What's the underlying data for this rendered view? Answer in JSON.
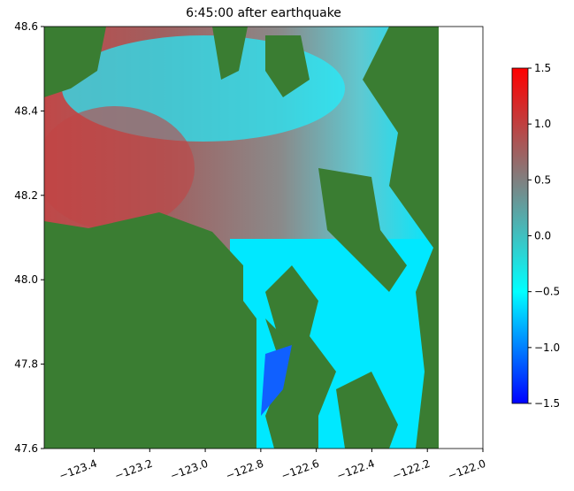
{
  "chart_data": {
    "type": "heatmap",
    "title": "6:45:00 after earthquake",
    "xlim": [
      -123.58,
      -122.0
    ],
    "xticks": [
      {
        "value": -123.4,
        "label": "−123.4"
      },
      {
        "value": -123.2,
        "label": "−123.2"
      },
      {
        "value": -123.0,
        "label": "−123.0"
      },
      {
        "value": -122.8,
        "label": "−122.8"
      },
      {
        "value": -122.6,
        "label": "−122.6"
      },
      {
        "value": -122.4,
        "label": "−122.4"
      },
      {
        "value": -122.2,
        "label": "−122.2"
      },
      {
        "value": -122.0,
        "label": "−122.0"
      }
    ],
    "ylim": [
      47.6,
      48.6
    ],
    "yticks": [
      {
        "value": 47.6,
        "label": "47.6"
      },
      47.8,
      {
        "value": 48.0,
        "label": "48.0"
      },
      48.2,
      48.4,
      48.6
    ],
    "colorbar": {
      "lim": [
        -1.5,
        1.5
      ],
      "colors": [
        "#0000ff",
        "#00ffff",
        "#808080",
        "#ff0000"
      ],
      "ticks": [
        {
          "value": 1.5,
          "label": "1.5"
        },
        {
          "value": 1.0,
          "label": "1.0"
        },
        {
          "value": 0.5,
          "label": "0.5"
        },
        {
          "value": 0.0,
          "label": "0.0"
        },
        {
          "value": -0.5,
          "label": "−0.5"
        },
        {
          "value": -1.0,
          "label": "−1.0"
        },
        {
          "value": -1.5,
          "label": "−1.5"
        }
      ]
    },
    "land_color": "#3a7d32"
  }
}
